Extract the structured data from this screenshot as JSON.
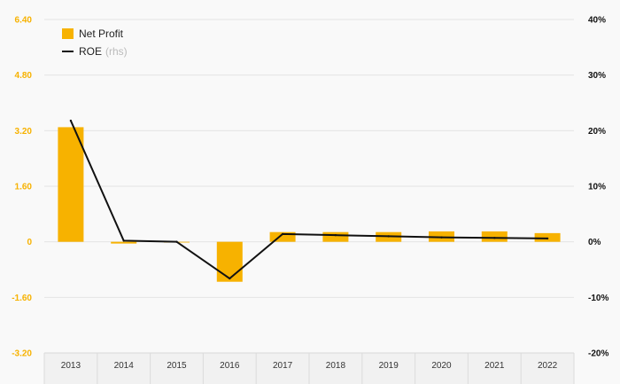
{
  "colors": {
    "bar": "#f7b200",
    "line": "#111111",
    "left_axis_text": "#f7b200",
    "grid": "#e4e4e4"
  },
  "legend": {
    "bar_label": "Net Profit",
    "line_label": "ROE",
    "line_suffix": "(rhs)"
  },
  "chart_data": {
    "type": "bar",
    "categories": [
      "2013",
      "2014",
      "2015",
      "2016",
      "2017",
      "2018",
      "2019",
      "2020",
      "2021",
      "2022"
    ],
    "series": [
      {
        "name": "Net Profit",
        "type": "bar",
        "axis": "left",
        "values": [
          3.3,
          -0.05,
          0.0,
          -1.15,
          0.28,
          0.28,
          0.28,
          0.3,
          0.3,
          0.25
        ]
      },
      {
        "name": "ROE",
        "type": "line",
        "axis": "right",
        "values": [
          21.8,
          0.2,
          0.0,
          -6.6,
          1.4,
          1.2,
          1.0,
          0.8,
          0.7,
          0.6
        ]
      }
    ],
    "left_axis": {
      "ylim": [
        -3.2,
        6.4
      ],
      "ticks": [
        "6.40",
        "4.80",
        "3.20",
        "1.60",
        "0",
        "-1.60",
        "-3.20"
      ]
    },
    "right_axis": {
      "ylim": [
        -20,
        40
      ],
      "ticks": [
        "40%",
        "30%",
        "20%",
        "10%",
        "0%",
        "-10%",
        "-20%"
      ]
    },
    "grid": true,
    "legend_position": "top-left"
  }
}
